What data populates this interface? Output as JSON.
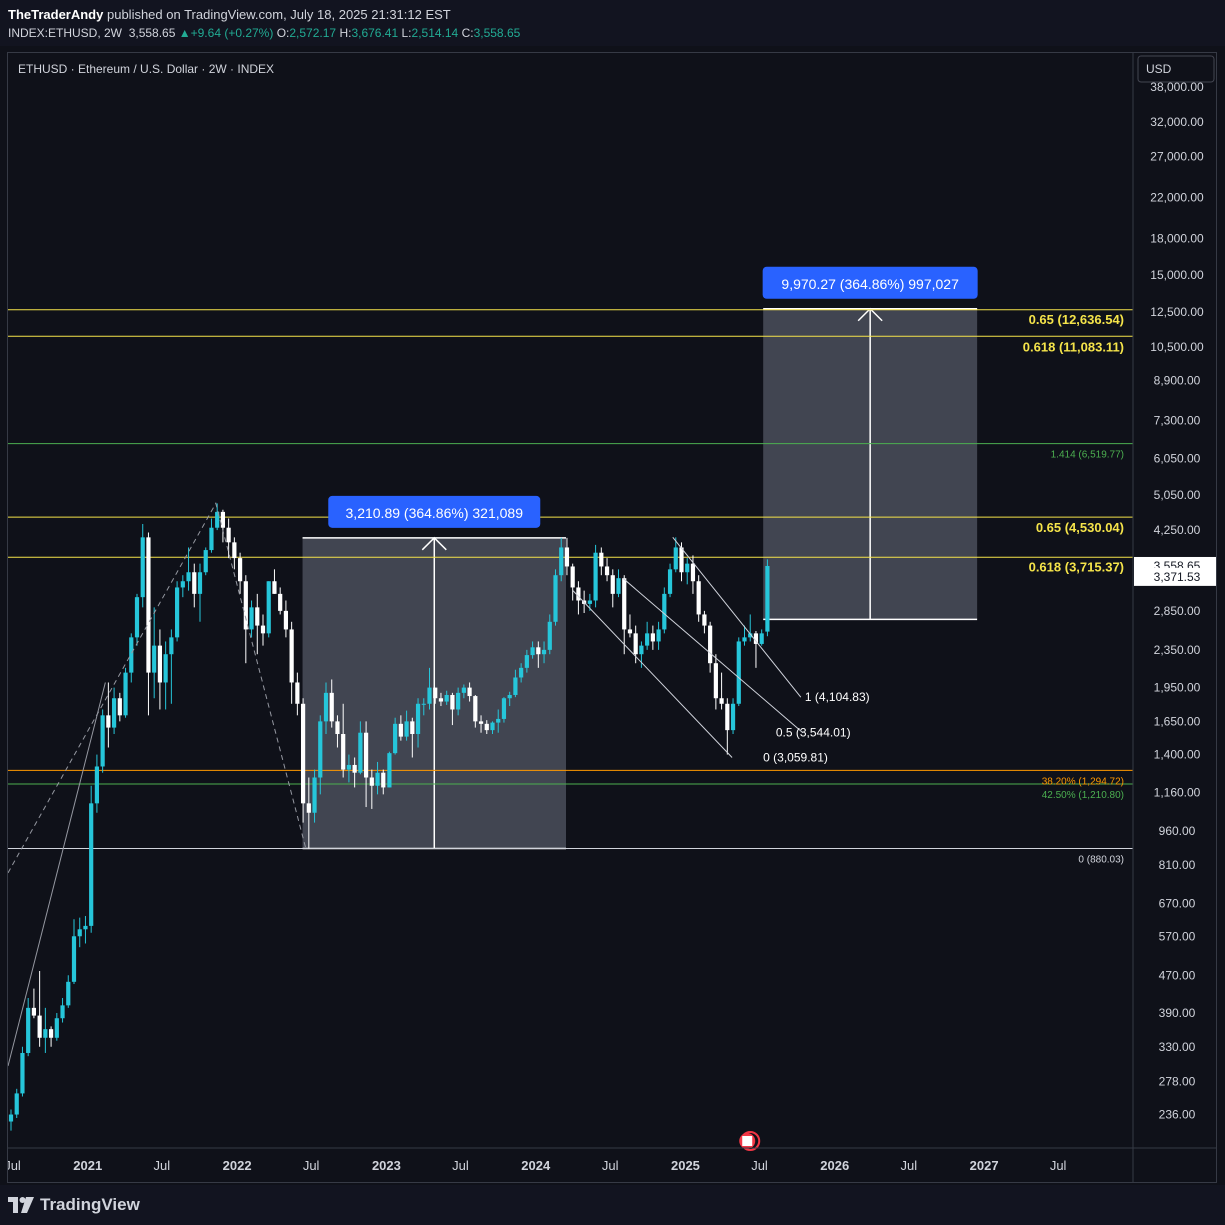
{
  "header": {
    "author": "TheTraderAndy",
    "published_text": "published on TradingView.com, July 18, 2025 21:31:12 EST",
    "symbol": "INDEX:ETHUSD, 2W",
    "last_price": "3,558.65",
    "change": "▲+9.64 (+0.27%)",
    "ohlc": {
      "o_label": "O:",
      "o": "2,572.17",
      "h_label": "H:",
      "h": "3,676.41",
      "l_label": "L:",
      "l": "2,514.14",
      "c_label": "C:",
      "c": "3,558.65"
    }
  },
  "footer": {
    "brand": "TradingView"
  },
  "colors": {
    "background": "#0f1119",
    "bull": "#26c6da",
    "bear": "#ffffff",
    "fib_yellow": "#f5e44a",
    "fib_green": "#4caf50",
    "fib_orange": "#ff9800",
    "label_blue": "#2962ff",
    "box": "#4a4f5c"
  },
  "chart_data": {
    "type": "candlestick",
    "title": "ETHUSD · Ethereum / U.S. Dollar · 2W · INDEX",
    "currency": "USD",
    "y_scale": "log",
    "ylim": [
      200,
      45000
    ],
    "x_range": [
      "2020-06-20",
      "2027-12-31"
    ],
    "y_ticks": [
      "38,000.00",
      "32,000.00",
      "27,000.00",
      "22,000.00",
      "18,000.00",
      "15,000.00",
      "12,500.00",
      "10,500.00",
      "8,900.00",
      "7,300.00",
      "6,050.00",
      "5,050.00",
      "4,250.00",
      "3,558.65",
      "3,371.53",
      "2,850.00",
      "2,350.00",
      "1,950.00",
      "1,650.00",
      "1,400.00",
      "1,160.00",
      "960.00",
      "810.00",
      "670.00",
      "570.00",
      "470.00",
      "390.00",
      "330.00",
      "278.00",
      "236.00"
    ],
    "x_ticks": [
      {
        "label": "Jul",
        "date": "2020-07-01"
      },
      {
        "label": "2021",
        "date": "2021-01-01"
      },
      {
        "label": "Jul",
        "date": "2021-07-01"
      },
      {
        "label": "2022",
        "date": "2022-01-01"
      },
      {
        "label": "Jul",
        "date": "2022-07-01"
      },
      {
        "label": "2023",
        "date": "2023-01-01"
      },
      {
        "label": "Jul",
        "date": "2023-07-01"
      },
      {
        "label": "2024",
        "date": "2024-01-01"
      },
      {
        "label": "Jul",
        "date": "2024-07-01"
      },
      {
        "label": "2025",
        "date": "2025-01-01"
      },
      {
        "label": "Jul",
        "date": "2025-07-01"
      },
      {
        "label": "2026",
        "date": "2026-01-01"
      },
      {
        "label": "Jul",
        "date": "2026-07-01"
      },
      {
        "label": "2027",
        "date": "2027-01-01"
      },
      {
        "label": "Jul",
        "date": "2027-07-01"
      }
    ],
    "price_labels": [
      {
        "text": "3,558.65",
        "value": 3558.65
      },
      {
        "text": "3,371.53",
        "value": 3371.53
      }
    ],
    "fib_levels": [
      {
        "label": "0.65 (12,636.54)",
        "value": 12636.54,
        "color": "yellow"
      },
      {
        "label": "0.618 (11,083.11)",
        "value": 11083.11,
        "color": "yellow"
      },
      {
        "label": "1.414 (6,519.77)",
        "value": 6519.77,
        "color": "green"
      },
      {
        "label": "0.65 (4,530.04)",
        "value": 4530.04,
        "color": "yellow"
      },
      {
        "label": "0.618 (3,715.37)",
        "value": 3715.37,
        "color": "yellow"
      },
      {
        "label": "38.20% (1,294.72)",
        "value": 1294.72,
        "color": "orange"
      },
      {
        "label": "42.50% (1,210.80)",
        "value": 1210.8,
        "color": "green"
      },
      {
        "label": "0 (880.03)",
        "value": 880.03,
        "color": "white"
      }
    ],
    "channel_levels": [
      {
        "label": "1 (4,104.83)",
        "value": 4104.83
      },
      {
        "label": "0.5 (3,544.01)",
        "value": 3544.01
      },
      {
        "label": "0 (3,059.81)",
        "value": 3059.81
      }
    ],
    "measures": [
      {
        "label": "3,210.89 (364.86%) 321,089",
        "from_date": "2022-06-10",
        "to_date": "2024-03-15",
        "low": 880,
        "high": 4090
      },
      {
        "label": "9,970.27 (364.86%) 997,027",
        "from_date": "2025-07-10",
        "to_date": "2026-12-15",
        "low": 2733,
        "high": 12700
      }
    ],
    "candles": [
      [
        "2020-06-20",
        228,
        242,
        218,
        236
      ],
      [
        "2020-07-04",
        236,
        268,
        232,
        262
      ],
      [
        "2020-07-18",
        262,
        330,
        258,
        320
      ],
      [
        "2020-08-01",
        320,
        420,
        315,
        400
      ],
      [
        "2020-08-15",
        400,
        440,
        380,
        385
      ],
      [
        "2020-08-29",
        385,
        480,
        330,
        345
      ],
      [
        "2020-09-12",
        345,
        400,
        320,
        360
      ],
      [
        "2020-09-26",
        360,
        365,
        330,
        345
      ],
      [
        "2020-10-10",
        345,
        390,
        340,
        380
      ],
      [
        "2020-10-24",
        380,
        420,
        372,
        405
      ],
      [
        "2020-11-07",
        405,
        470,
        400,
        455
      ],
      [
        "2020-11-21",
        455,
        620,
        450,
        570
      ],
      [
        "2020-12-05",
        570,
        625,
        540,
        590
      ],
      [
        "2020-12-19",
        590,
        630,
        550,
        600
      ],
      [
        "2021-01-02",
        600,
        1200,
        580,
        1100
      ],
      [
        "2021-01-16",
        1100,
        1400,
        1050,
        1320
      ],
      [
        "2021-01-30",
        1320,
        1750,
        1280,
        1700
      ],
      [
        "2021-02-13",
        1700,
        2000,
        1450,
        1600
      ],
      [
        "2021-02-27",
        1600,
        1950,
        1550,
        1850
      ],
      [
        "2021-03-13",
        1850,
        1900,
        1650,
        1700
      ],
      [
        "2021-03-27",
        1700,
        2150,
        1680,
        2100
      ],
      [
        "2021-04-10",
        2100,
        2550,
        2000,
        2500
      ],
      [
        "2021-04-24",
        2500,
        3100,
        2400,
        3050
      ],
      [
        "2021-05-08",
        3050,
        4380,
        2900,
        4100
      ],
      [
        "2021-05-22",
        4100,
        4200,
        1700,
        2100
      ],
      [
        "2021-06-05",
        2100,
        2900,
        1850,
        2400
      ],
      [
        "2021-06-19",
        2400,
        2600,
        1750,
        2000
      ],
      [
        "2021-07-03",
        2000,
        2450,
        1750,
        2300
      ],
      [
        "2021-07-17",
        2300,
        2600,
        1800,
        2500
      ],
      [
        "2021-07-31",
        2500,
        3300,
        2450,
        3200
      ],
      [
        "2021-08-14",
        3200,
        3400,
        3050,
        3300
      ],
      [
        "2021-08-28",
        3300,
        3900,
        3150,
        3450
      ],
      [
        "2021-09-11",
        3450,
        3600,
        2900,
        3100
      ],
      [
        "2021-09-25",
        3100,
        3600,
        2700,
        3450
      ],
      [
        "2021-10-09",
        3450,
        3900,
        3400,
        3850
      ],
      [
        "2021-10-23",
        3850,
        4500,
        3800,
        4300
      ],
      [
        "2021-11-06",
        4300,
        4850,
        4250,
        4650
      ],
      [
        "2021-11-20",
        4650,
        4700,
        4000,
        4300
      ],
      [
        "2021-12-04",
        4300,
        4500,
        3700,
        4000
      ],
      [
        "2021-12-18",
        4000,
        4100,
        3500,
        3700
      ],
      [
        "2022-01-01",
        3700,
        3800,
        3100,
        3300
      ],
      [
        "2022-01-15",
        3300,
        3400,
        2200,
        2600
      ],
      [
        "2022-01-29",
        2600,
        3000,
        2500,
        2900
      ],
      [
        "2022-02-12",
        2900,
        3100,
        2300,
        2650
      ],
      [
        "2022-02-26",
        2650,
        2800,
        2400,
        2550
      ],
      [
        "2022-03-12",
        2550,
        3300,
        2500,
        3300
      ],
      [
        "2022-03-26",
        3300,
        3500,
        3100,
        3100
      ],
      [
        "2022-04-09",
        3100,
        3200,
        2800,
        2850
      ],
      [
        "2022-04-23",
        2850,
        3000,
        2500,
        2600
      ],
      [
        "2022-05-07",
        2600,
        2700,
        1800,
        2000
      ],
      [
        "2022-05-21",
        2000,
        2100,
        1700,
        1800
      ],
      [
        "2022-06-04",
        1800,
        1850,
        1000,
        1100
      ],
      [
        "2022-06-18",
        1100,
        1250,
        880,
        1050
      ],
      [
        "2022-07-02",
        1050,
        1300,
        1000,
        1250
      ],
      [
        "2022-07-16",
        1250,
        1700,
        1150,
        1650
      ],
      [
        "2022-07-30",
        1650,
        2000,
        1550,
        1900
      ],
      [
        "2022-08-13",
        1900,
        2030,
        1600,
        1650
      ],
      [
        "2022-08-27",
        1650,
        1700,
        1450,
        1550
      ],
      [
        "2022-09-10",
        1550,
        1800,
        1250,
        1300
      ],
      [
        "2022-09-24",
        1300,
        1400,
        1220,
        1330
      ],
      [
        "2022-10-08",
        1330,
        1380,
        1190,
        1280
      ],
      [
        "2022-10-22",
        1280,
        1650,
        1270,
        1560
      ],
      [
        "2022-11-05",
        1560,
        1650,
        1080,
        1250
      ],
      [
        "2022-11-19",
        1250,
        1300,
        1070,
        1200
      ],
      [
        "2022-12-03",
        1200,
        1350,
        1150,
        1280
      ],
      [
        "2022-12-17",
        1280,
        1300,
        1150,
        1190
      ],
      [
        "2023-01-01",
        1190,
        1420,
        1190,
        1410
      ],
      [
        "2023-01-15",
        1410,
        1680,
        1400,
        1630
      ],
      [
        "2023-01-29",
        1630,
        1700,
        1500,
        1530
      ],
      [
        "2023-02-12",
        1530,
        1740,
        1500,
        1650
      ],
      [
        "2023-02-26",
        1650,
        1680,
        1380,
        1550
      ],
      [
        "2023-03-12",
        1550,
        1850,
        1450,
        1800
      ],
      [
        "2023-03-26",
        1800,
        1850,
        1700,
        1800
      ],
      [
        "2023-04-09",
        1800,
        2150,
        1750,
        1950
      ],
      [
        "2023-04-23",
        1950,
        1950,
        1800,
        1850
      ],
      [
        "2023-05-07",
        1850,
        1900,
        1780,
        1820
      ],
      [
        "2023-05-21",
        1820,
        1920,
        1790,
        1880
      ],
      [
        "2023-06-04",
        1880,
        1900,
        1620,
        1750
      ],
      [
        "2023-06-18",
        1750,
        1950,
        1700,
        1900
      ],
      [
        "2023-07-02",
        1900,
        1980,
        1850,
        1950
      ],
      [
        "2023-07-16",
        1950,
        2000,
        1820,
        1870
      ],
      [
        "2023-07-30",
        1870,
        1880,
        1600,
        1650
      ],
      [
        "2023-08-13",
        1650,
        1700,
        1560,
        1630
      ],
      [
        "2023-08-27",
        1630,
        1660,
        1550,
        1580
      ],
      [
        "2023-09-10",
        1580,
        1650,
        1550,
        1640
      ],
      [
        "2023-09-24",
        1640,
        1750,
        1560,
        1670
      ],
      [
        "2023-10-08",
        1670,
        1860,
        1640,
        1850
      ],
      [
        "2023-10-22",
        1850,
        1910,
        1780,
        1880
      ],
      [
        "2023-11-05",
        1880,
        2130,
        1860,
        2050
      ],
      [
        "2023-11-19",
        2050,
        2200,
        2000,
        2150
      ],
      [
        "2023-12-03",
        2150,
        2350,
        2100,
        2290
      ],
      [
        "2023-12-17",
        2290,
        2450,
        2250,
        2380
      ],
      [
        "2023-12-31",
        2380,
        2450,
        2150,
        2300
      ],
      [
        "2024-01-14",
        2300,
        2450,
        2200,
        2350
      ],
      [
        "2024-01-28",
        2350,
        2800,
        2300,
        2700
      ],
      [
        "2024-02-11",
        2700,
        3500,
        2650,
        3400
      ],
      [
        "2024-02-25",
        3400,
        4090,
        3300,
        3900
      ],
      [
        "2024-03-10",
        3900,
        4090,
        3400,
        3550
      ],
      [
        "2024-03-24",
        3550,
        3600,
        3000,
        3200
      ],
      [
        "2024-04-07",
        3200,
        3300,
        2800,
        3000
      ],
      [
        "2024-04-21",
        3000,
        3150,
        2820,
        2950
      ],
      [
        "2024-05-05",
        2950,
        3100,
        2850,
        3000
      ],
      [
        "2024-05-19",
        3000,
        3950,
        2900,
        3800
      ],
      [
        "2024-06-02",
        3800,
        3900,
        3400,
        3550
      ],
      [
        "2024-06-16",
        3550,
        3700,
        3300,
        3400
      ],
      [
        "2024-06-30",
        3400,
        3500,
        2900,
        3100
      ],
      [
        "2024-07-14",
        3100,
        3500,
        3050,
        3350
      ],
      [
        "2024-07-28",
        3350,
        3400,
        2300,
        2600
      ],
      [
        "2024-08-11",
        2600,
        2800,
        2500,
        2550
      ],
      [
        "2024-08-25",
        2550,
        2650,
        2200,
        2300
      ],
      [
        "2024-09-08",
        2300,
        2450,
        2150,
        2400
      ],
      [
        "2024-09-22",
        2400,
        2700,
        2350,
        2550
      ],
      [
        "2024-10-06",
        2550,
        2650,
        2350,
        2450
      ],
      [
        "2024-10-20",
        2450,
        2700,
        2350,
        2600
      ],
      [
        "2024-11-03",
        2600,
        3200,
        2550,
        3100
      ],
      [
        "2024-11-17",
        3100,
        3600,
        3050,
        3500
      ],
      [
        "2024-12-01",
        3500,
        4100,
        3450,
        3900
      ],
      [
        "2024-12-15",
        3900,
        4000,
        3300,
        3450
      ],
      [
        "2024-12-29",
        3450,
        3700,
        3250,
        3600
      ],
      [
        "2025-01-12",
        3600,
        3750,
        3100,
        3300
      ],
      [
        "2025-01-26",
        3300,
        3400,
        2700,
        2800
      ],
      [
        "2025-02-09",
        2800,
        2850,
        2550,
        2650
      ],
      [
        "2025-02-23",
        2650,
        2700,
        2100,
        2200
      ],
      [
        "2025-03-09",
        2200,
        2300,
        1750,
        1850
      ],
      [
        "2025-03-23",
        1850,
        2100,
        1750,
        1800
      ],
      [
        "2025-04-06",
        1800,
        1850,
        1400,
        1580
      ],
      [
        "2025-04-20",
        1580,
        1850,
        1550,
        1800
      ],
      [
        "2025-05-04",
        1800,
        2500,
        1780,
        2450
      ],
      [
        "2025-05-18",
        2450,
        2650,
        2400,
        2500
      ],
      [
        "2025-06-01",
        2500,
        2800,
        2450,
        2550
      ],
      [
        "2025-06-15",
        2550,
        2580,
        2150,
        2420
      ],
      [
        "2025-06-29",
        2420,
        2600,
        2400,
        2550
      ],
      [
        "2025-07-13",
        2572.17,
        3676.41,
        2514.14,
        3558.65
      ]
    ]
  }
}
